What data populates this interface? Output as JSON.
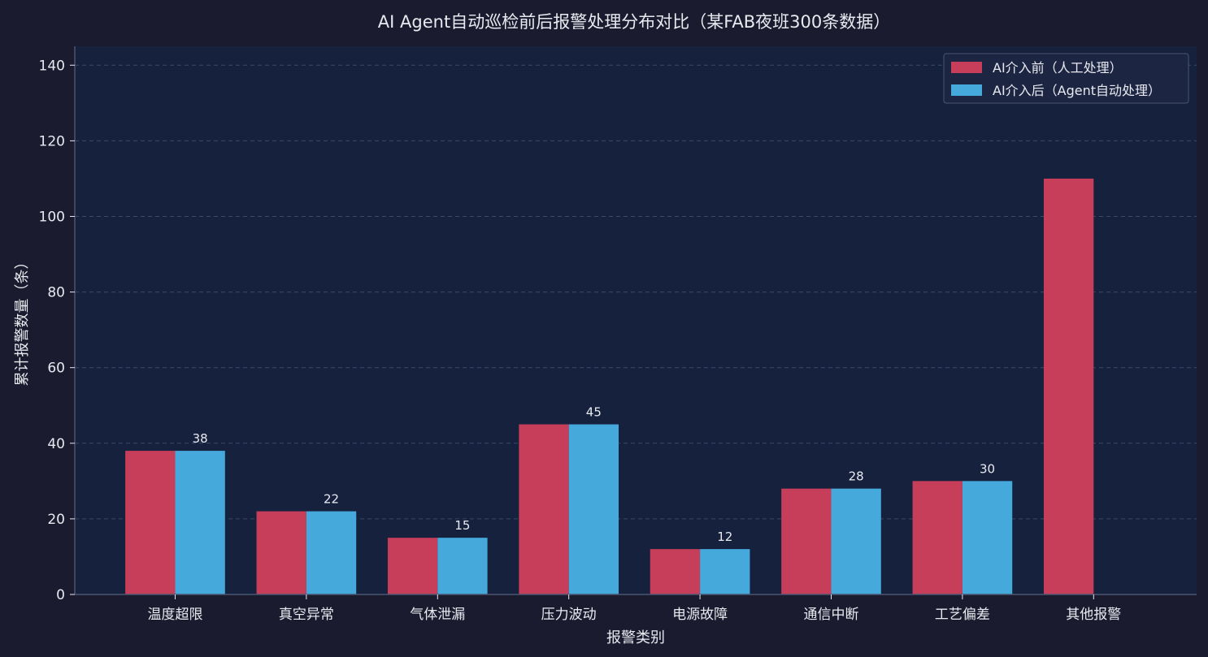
{
  "chart_data": {
    "type": "bar",
    "title": "AI Agent自动巡检前后报警处理分布对比（某FAB夜班300条数据）",
    "xlabel": "报警类别",
    "ylabel": "累计报警数量（条）",
    "ylim": [
      0,
      145
    ],
    "yticks": [
      0,
      20,
      40,
      60,
      80,
      100,
      120,
      140
    ],
    "grid": true,
    "legend_position": "top-right",
    "categories": [
      "温度超限",
      "真空异常",
      "气体泄漏",
      "压力波动",
      "电源故障",
      "通信中断",
      "工艺偏差",
      "其他报警"
    ],
    "series": [
      {
        "name": "AI介入前（人工处理）",
        "color": "#c73e5a",
        "values": [
          38,
          22,
          15,
          45,
          12,
          28,
          30,
          110
        ]
      },
      {
        "name": "AI介入后（Agent自动处理）",
        "color": "#45a9dc",
        "values": [
          38,
          22,
          15,
          45,
          12,
          28,
          30,
          0
        ]
      }
    ],
    "data_labels": [
      "38",
      "22",
      "15",
      "45",
      "12",
      "28",
      "30",
      ""
    ]
  },
  "colors": {
    "background": "#1a1b2e",
    "plot_background": "#16213e",
    "text": "#e8eaf0",
    "grid": "#3a4a66",
    "axis": "#4a5570"
  }
}
